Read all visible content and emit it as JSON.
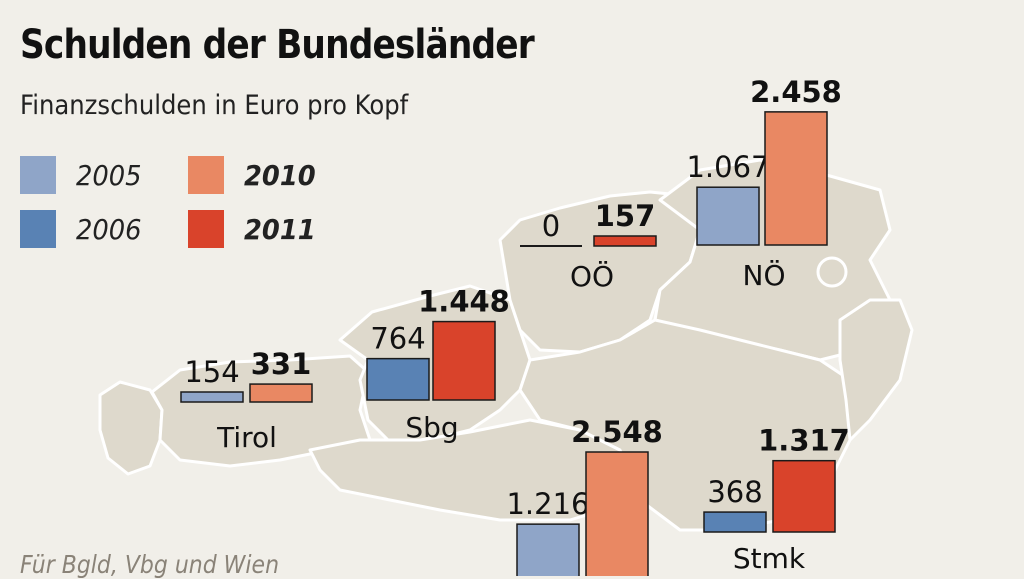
{
  "title": "Schulden der Bundesländer",
  "subtitle": "Finanzschulden in Euro pro Kopf",
  "footnote": "Für Bgld, Vbg und Wien",
  "legend": [
    {
      "label": "2005",
      "color": "#8fa5c8",
      "bold": false
    },
    {
      "label": "2010",
      "color": "#e98863",
      "bold": true
    },
    {
      "label": "2006",
      "color": "#5982b4",
      "bold": false
    },
    {
      "label": "2011",
      "color": "#d9432b",
      "bold": true
    }
  ],
  "colors": {
    "background": "#f1efe9",
    "map_fill": "#ded9cc",
    "map_stroke": "#ffffff",
    "bar_stroke": "#1a1a1a"
  },
  "chart_data": {
    "type": "bar",
    "title": "Schulden der Bundesländer",
    "subtitle": "Finanzschulden in Euro pro Kopf",
    "series": [
      {
        "name": "2005"
      },
      {
        "name": "2006"
      },
      {
        "name": "2010"
      },
      {
        "name": "2011"
      }
    ],
    "groups": [
      {
        "region": "Tirol",
        "bars": [
          {
            "series": "2005",
            "value": 154,
            "label": "154",
            "bold": false
          },
          {
            "series": "2010",
            "value": 331,
            "label": "331",
            "bold": true
          }
        ]
      },
      {
        "region": "Sbg",
        "bars": [
          {
            "series": "2006",
            "value": 764,
            "label": "764",
            "bold": false
          },
          {
            "series": "2011",
            "value": 1448,
            "label": "1.448",
            "bold": true
          }
        ]
      },
      {
        "region": "OÖ",
        "bars": [
          {
            "series": "2006",
            "value": 0,
            "label": "0",
            "bold": false
          },
          {
            "series": "2011",
            "value": 157,
            "label": "157",
            "bold": true
          }
        ]
      },
      {
        "region": "NÖ",
        "bars": [
          {
            "series": "2005",
            "value": 1067,
            "label": "1.067",
            "bold": false
          },
          {
            "series": "2010",
            "value": 2458,
            "label": "2.458",
            "bold": true
          }
        ]
      },
      {
        "region": "",
        "bars": [
          {
            "series": "2005",
            "value": 1216,
            "label": "1.216",
            "bold": false
          },
          {
            "series": "2010",
            "value": 2548,
            "label": "2.548",
            "bold": true
          }
        ]
      },
      {
        "region": "Stmk",
        "bars": [
          {
            "series": "2006",
            "value": 368,
            "label": "368",
            "bold": false
          },
          {
            "series": "2011",
            "value": 1317,
            "label": "1.317",
            "bold": true
          }
        ]
      }
    ]
  }
}
